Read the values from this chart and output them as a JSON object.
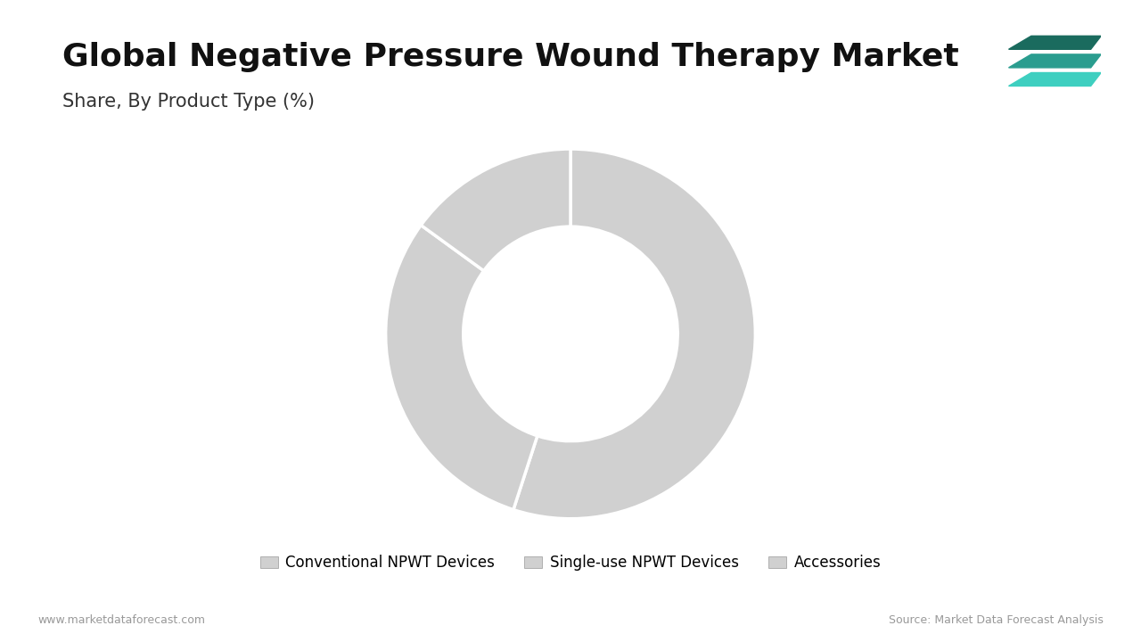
{
  "title": "Global Negative Pressure Wound Therapy Market",
  "subtitle": "Share, By Product Type (%)",
  "segments": [
    "Conventional NPWT Devices",
    "Single-use NPWT Devices",
    "Accessories"
  ],
  "values": [
    55,
    30,
    15
  ],
  "colors": [
    "#d0d0d0",
    "#d0d0d0",
    "#d0d0d0"
  ],
  "wedge_edge_color": "#ffffff",
  "wedge_linewidth": 2.5,
  "background_color": "#ffffff",
  "title_fontsize": 26,
  "subtitle_fontsize": 15,
  "legend_fontsize": 12,
  "footer_left": "www.marketdataforecast.com",
  "footer_right": "Source: Market Data Forecast Analysis",
  "footer_fontsize": 9,
  "accent_color": "#2a9d8f",
  "start_angle": 90,
  "icon_colors": [
    "#1a6b5e",
    "#2a9d8f",
    "#3ecfc0"
  ]
}
